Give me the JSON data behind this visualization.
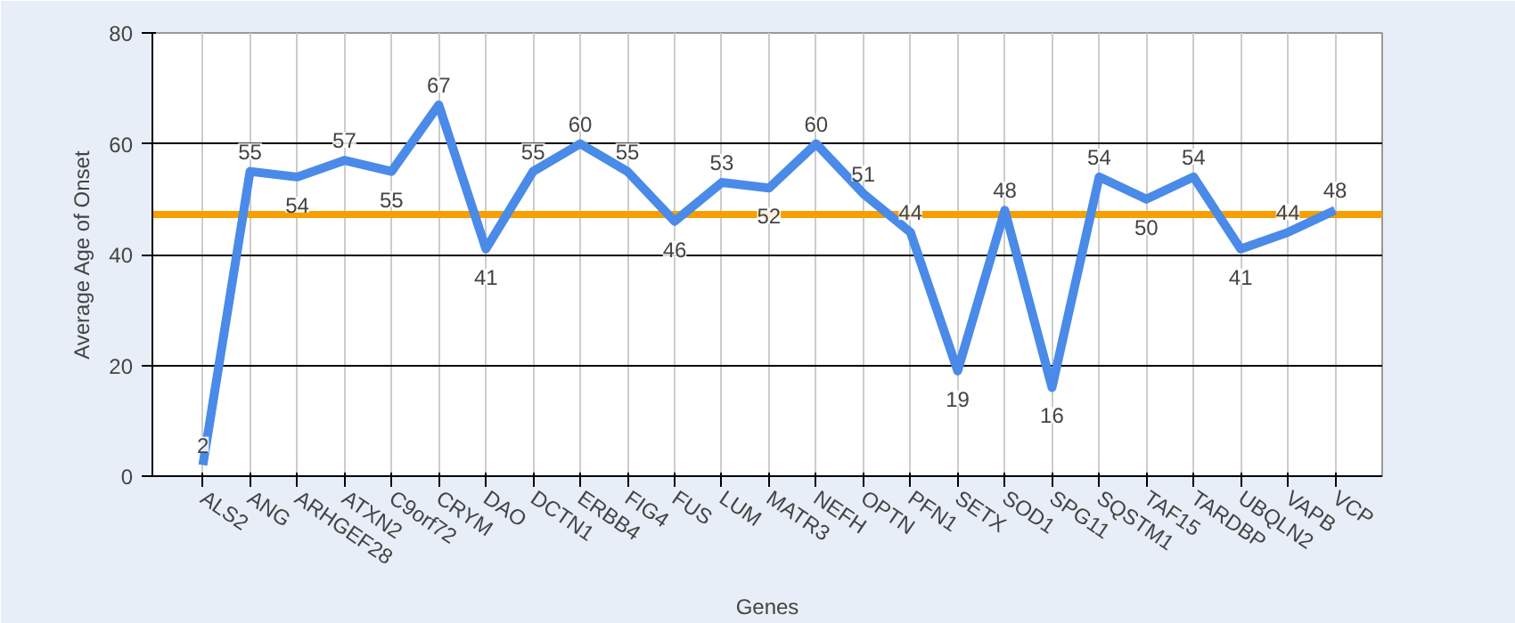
{
  "chart_data": {
    "type": "line",
    "xlabel": "Genes",
    "ylabel": "Average Age of Onset",
    "categories": [
      "ALS2",
      "ANG",
      "ARHGEF28",
      "ATXN2",
      "C9orf72",
      "CRYM",
      "DAO",
      "DCTN1",
      "ERBB4",
      "FIG4",
      "FUS",
      "LUM",
      "MATR3",
      "NEFH",
      "OPTN",
      "PFN1",
      "SETX",
      "SOD1",
      "SPG11",
      "SQSTM1",
      "TAF15",
      "TARDBP",
      "UBQLN2",
      "VAPB",
      "VCP"
    ],
    "series": [
      {
        "color": "#4a8ae8",
        "values": [
          2,
          55,
          54,
          57,
          55,
          67,
          41,
          55,
          60,
          55,
          46,
          53,
          52,
          60,
          51,
          44,
          19,
          48,
          16,
          54,
          50,
          54,
          41,
          44,
          48
        ]
      }
    ],
    "ylim": [
      0,
      80
    ],
    "yticks": [
      0,
      20,
      40,
      60,
      80
    ],
    "grid": true,
    "data_labels": true,
    "marker": "none",
    "line_style": "solid",
    "ref_lines": [
      {
        "axis": "y",
        "value": 47.24,
        "color": "#f5a000"
      }
    ]
  }
}
